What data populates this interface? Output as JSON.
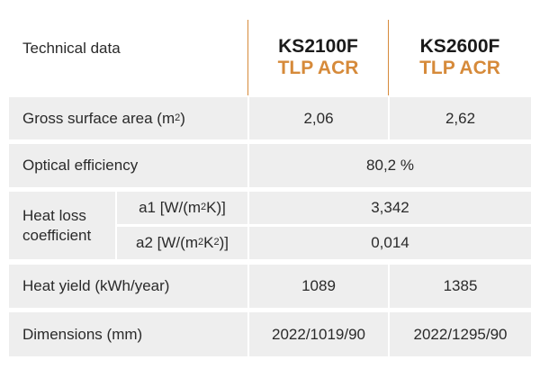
{
  "header": {
    "label": "Technical data",
    "products": [
      {
        "code": "KS2100F",
        "variant": "TLP ACR"
      },
      {
        "code": "KS2600F",
        "variant": "TLP ACR"
      }
    ]
  },
  "rows": {
    "gross_surface": {
      "label_pre": "Gross surface area (m",
      "label_sup": "2",
      "label_post": ")",
      "values": [
        "2,06",
        "2,62"
      ]
    },
    "optical": {
      "label": "Optical efficiency",
      "value": "80,2 %"
    },
    "heat_loss": {
      "label_line1": "Heat loss",
      "label_line2": "coefficient",
      "a1": {
        "label_pre": "a1 [W/(m",
        "label_sup": "2",
        "label_post": "K)]",
        "value": "3,342"
      },
      "a2": {
        "label_pre": "a2 [W/(m",
        "label_sup1": "2",
        "label_mid": "K",
        "label_sup2": "2",
        "label_post": ")]",
        "value": "0,014"
      }
    },
    "heat_yield": {
      "label": "Heat yield (kWh/year)",
      "values": [
        "1089",
        "1385"
      ]
    },
    "dimensions": {
      "label": "Dimensions (mm)",
      "values": [
        "2022/1019/90",
        "2022/1295/90"
      ]
    }
  },
  "colors": {
    "accent": "#d68a3a",
    "row_bg": "#eeeeee"
  }
}
